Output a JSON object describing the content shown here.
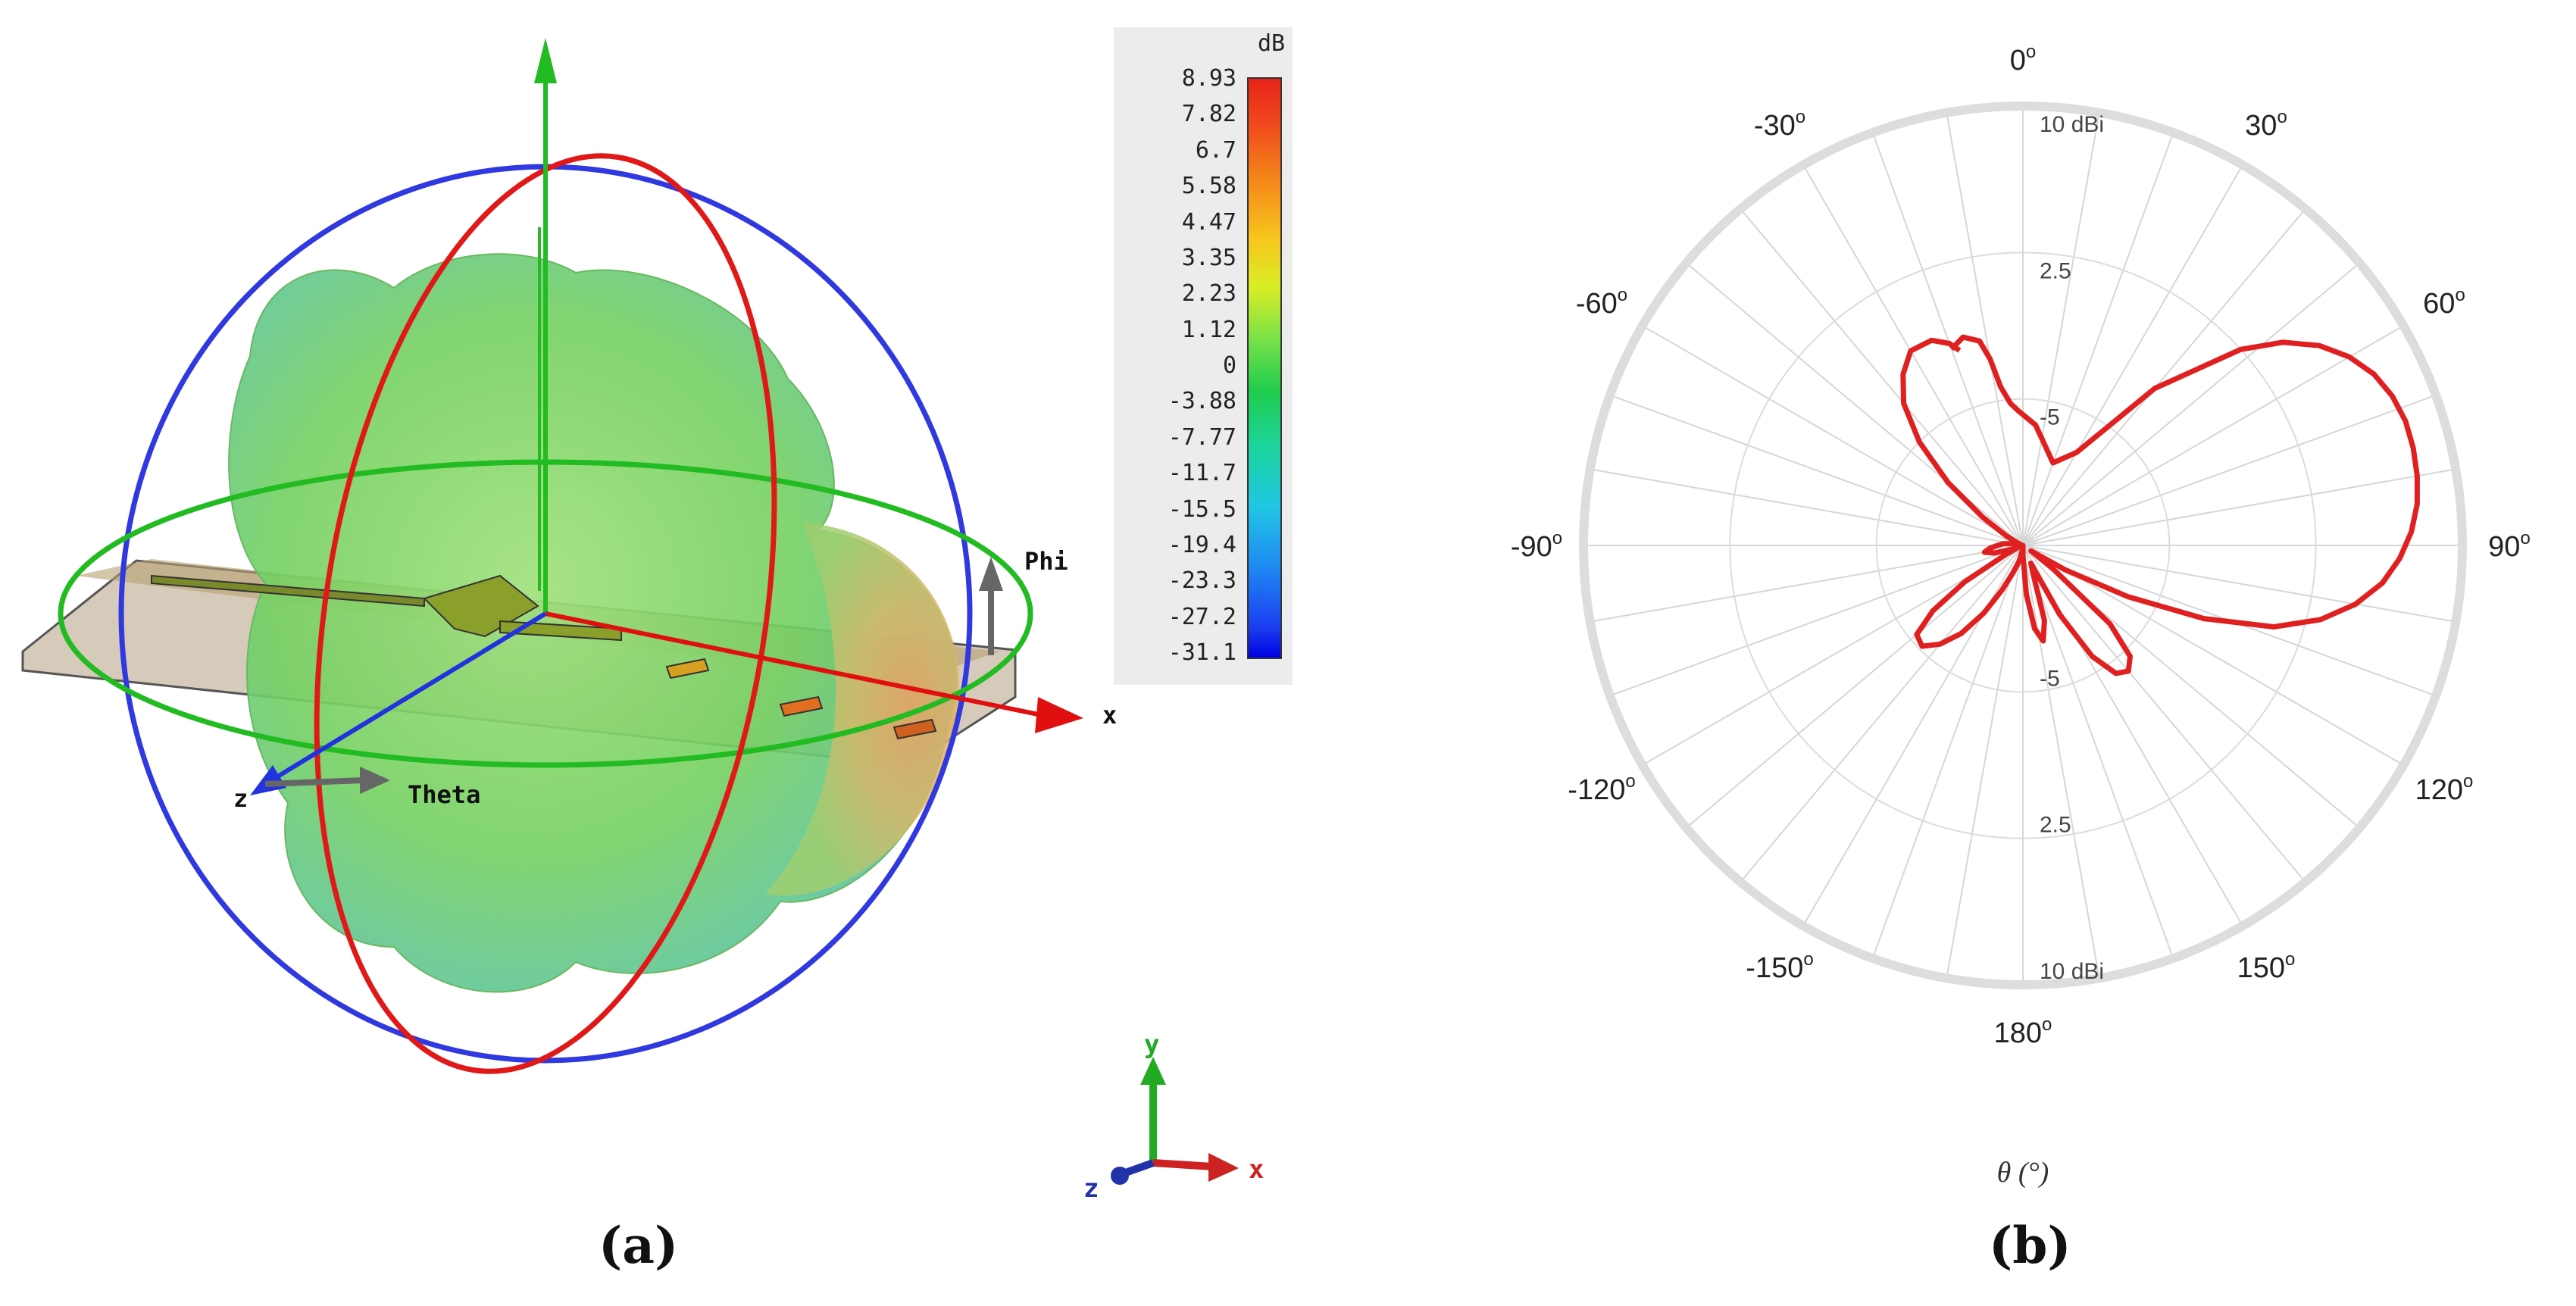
{
  "captions": {
    "a": "(a)",
    "b": "(b)"
  },
  "panel_a": {
    "legend": {
      "unit": "dB",
      "ticks": [
        "8.93",
        "7.82",
        "6.7",
        "5.58",
        "4.47",
        "3.35",
        "2.23",
        "1.12",
        "0",
        "-3.88",
        "-7.77",
        "-11.7",
        "-15.5",
        "-19.4",
        "-23.3",
        "-27.2",
        "-31.1"
      ]
    },
    "labels": {
      "phi": "Phi",
      "theta": "Theta",
      "x": "x",
      "z": "z"
    },
    "triad": {
      "x": "x",
      "y": "y",
      "z": "z"
    },
    "colors": {
      "x_axis": "#e01010",
      "y_axis": "#22bb22",
      "z_axis": "#2233dd",
      "pattern": "#6fd060"
    }
  },
  "chart_data": {
    "type": "polar",
    "xlabel": "θ (°)",
    "angle_ticks": [
      {
        "angle": 0,
        "label": "0"
      },
      {
        "angle": 30,
        "label": "30"
      },
      {
        "angle": 60,
        "label": "60"
      },
      {
        "angle": 90,
        "label": "90"
      },
      {
        "angle": 120,
        "label": "120"
      },
      {
        "angle": 150,
        "label": "150"
      },
      {
        "angle": 180,
        "label": "180"
      },
      {
        "angle": -150,
        "label": "-150"
      },
      {
        "angle": -120,
        "label": "-120"
      },
      {
        "angle": -90,
        "label": "-90"
      },
      {
        "angle": -60,
        "label": "-60"
      },
      {
        "angle": -30,
        "label": "-30"
      }
    ],
    "radial_ticks_top": [
      "10 dBi",
      "2.5",
      "-5"
    ],
    "radial_ticks_bottom": [
      "-5",
      "2.5",
      "10 dBi"
    ],
    "rlim": [
      -12.5,
      10
    ],
    "grid": true,
    "series": [
      {
        "color": "#e02020",
        "theta": [
          -20,
          -16,
          -12,
          -10,
          -8,
          -5,
          -2,
          0,
          6,
          12,
          20,
          30,
          40,
          48,
          52,
          56,
          60,
          64,
          68,
          72,
          76,
          80,
          84,
          88,
          92,
          96,
          100,
          104,
          108,
          112,
          116,
          120,
          124,
          128,
          132,
          136,
          140,
          144,
          148,
          152,
          156,
          160,
          164,
          168,
          172,
          176,
          180,
          184,
          188,
          192,
          196,
          200,
          205,
          210,
          215,
          220,
          225,
          230,
          234,
          238,
          242,
          246,
          250,
          255,
          260,
          265,
          270,
          275,
          280,
          285,
          290,
          295,
          300,
          305,
          310,
          315,
          320,
          325,
          330,
          336,
          340,
          342
        ],
        "r": [
          -1.8,
          -1.4,
          -1.8,
          -2.8,
          -4.3,
          -5.2,
          -5.6,
          -5.8,
          -6.3,
          -7.2,
          -8.0,
          -7.0,
          -2.0,
          2.5,
          4.4,
          5.8,
          6.8,
          7.5,
          7.9,
          8.1,
          8.1,
          8.0,
          7.8,
          7.4,
          6.8,
          6.0,
          4.8,
          3.2,
          1.0,
          -2.5,
          -6.5,
          -10.0,
          -12.0,
          -10.5,
          -6.5,
          -4.6,
          -4.1,
          -4.4,
          -5.8,
          -8.5,
          -11.5,
          -11.0,
          -8.5,
          -7.5,
          -8.2,
          -10.0,
          -12.0,
          -12.5,
          -12.2,
          -11.8,
          -11.5,
          -11.0,
          -10.0,
          -8.5,
          -7.0,
          -5.9,
          -5.2,
          -5.4,
          -6.8,
          -9.0,
          -11.5,
          -12.2,
          -12.0,
          -11.0,
          -10.5,
          -10.8,
          -11.2,
          -11.5,
          -12.0,
          -12.3,
          -12.4,
          -12.2,
          -11.5,
          -10.0,
          -7.5,
          -5.0,
          -3.0,
          -1.8,
          -1.0,
          -1.0,
          -1.5,
          -2.0
        ]
      }
    ]
  }
}
